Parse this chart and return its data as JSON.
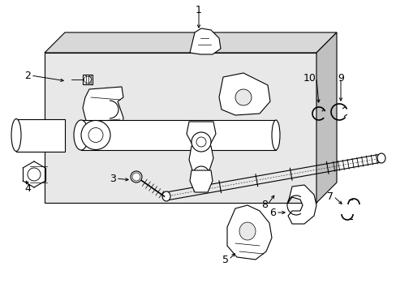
{
  "bg_color": "#ffffff",
  "fig_width": 4.89,
  "fig_height": 3.6,
  "dpi": 100,
  "lc": "#000000",
  "gray_light": "#d8d8d8",
  "gray_mid": "#c0c0c0",
  "gray_dark": "#a8a8a8",
  "gray_fill": "#e8e8e8",
  "white": "#ffffff",
  "font_size": 9
}
